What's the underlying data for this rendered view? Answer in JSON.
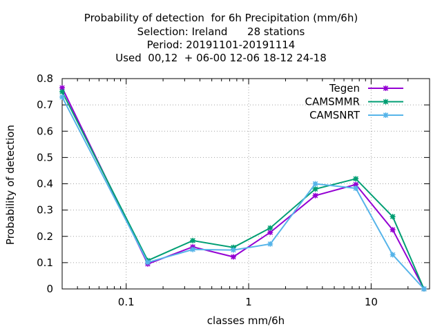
{
  "chart_data": {
    "type": "line",
    "title_lines": [
      "Probability of detection  for 6h Precipitation (mm/6h)",
      "Selection: Ireland      28 stations",
      "Period: 20191101-20191114",
      "Used  00,12  + 06-00 12-06 18-12 24-18"
    ],
    "xlabel": "classes mm/6h",
    "ylabel": "Probability of detection",
    "x_scale": "log",
    "xlim": [
      0.03,
      30
    ],
    "ylim": [
      0,
      0.8
    ],
    "x_ticks": [
      0.1,
      1,
      10
    ],
    "x_tick_labels": [
      "0.1",
      "1",
      "10"
    ],
    "y_ticks": [
      0,
      0.1,
      0.2,
      0.3,
      0.4,
      0.5,
      0.6,
      0.7,
      0.8
    ],
    "y_tick_labels": [
      "0",
      "0.1",
      "0.2",
      "0.3",
      "0.4",
      "0.5",
      "0.6",
      "0.7",
      "0.8"
    ],
    "grid": true,
    "legend_position": "top-right",
    "x": [
      0.03,
      0.15,
      0.35,
      0.75,
      1.5,
      3.5,
      7.5,
      15,
      27
    ],
    "series": [
      {
        "name": "Tegen",
        "color": "#9400d3",
        "values": [
          0.765,
          0.095,
          0.16,
          0.122,
          0.215,
          0.355,
          0.397,
          0.225,
          0
        ]
      },
      {
        "name": "CAMSMMR",
        "color": "#009e73",
        "values": [
          0.75,
          0.108,
          0.184,
          0.158,
          0.232,
          0.38,
          0.419,
          0.275,
          0
        ]
      },
      {
        "name": "CAMSNRT",
        "color": "#56b4e9",
        "values": [
          0.73,
          0.101,
          0.15,
          0.148,
          0.171,
          0.4,
          0.383,
          0.13,
          0
        ]
      }
    ]
  }
}
